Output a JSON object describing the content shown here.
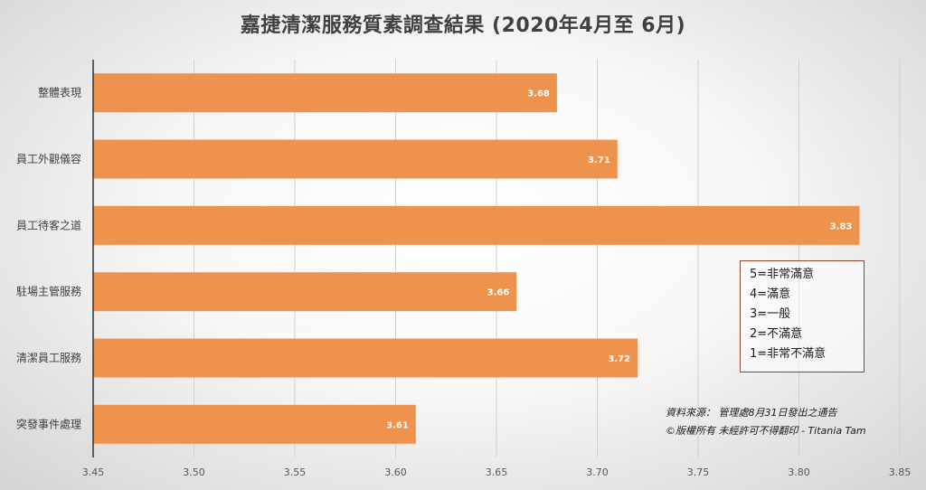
{
  "colors": {
    "bar": "#ee934e",
    "grid": "#d0d0d0",
    "axis": "#333333"
  },
  "chart_data": {
    "type": "bar",
    "orientation": "horizontal",
    "title": "嘉捷清潔服務質素調查結果 (2020年4月至 6月)",
    "categories": [
      "整體表現",
      "員工外觀儀容",
      "員工待客之道",
      "駐場主管服務",
      "清潔員工服務",
      "突發事件處理"
    ],
    "values": [
      3.68,
      3.71,
      3.83,
      3.66,
      3.72,
      3.61
    ],
    "data_labels": [
      "3.68",
      "3.71",
      "3.83",
      "3.66",
      "3.72",
      "3.61"
    ],
    "xlim": [
      3.45,
      3.85
    ],
    "xticks": [
      "3.45",
      "3.50",
      "3.55",
      "3.60",
      "3.65",
      "3.70",
      "3.75",
      "3.80",
      "3.85"
    ],
    "grid": true
  },
  "legend": {
    "lines": [
      "5=非常滿意",
      "4=滿意",
      "3=一般",
      "2=不滿意",
      "1=非常不滿意"
    ]
  },
  "note": {
    "source": "資料來源： 管理處8月31日發出之通告",
    "copyright": "©版權所有 未經許可不得翻印 - Titania Tam"
  }
}
